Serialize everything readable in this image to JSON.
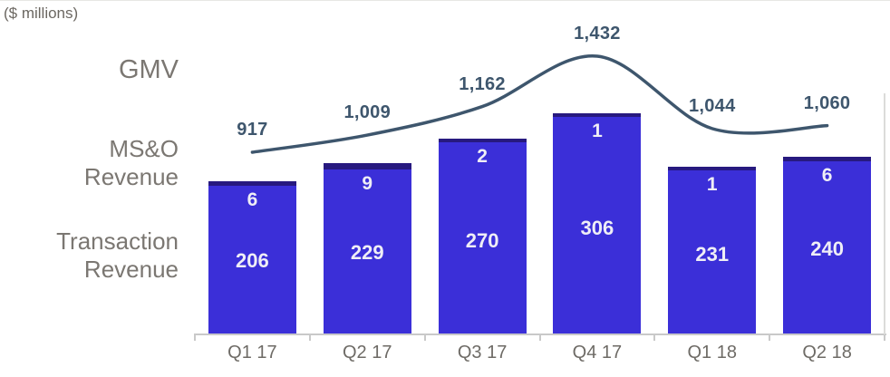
{
  "unit_note": "($ millions)",
  "legend": {
    "gmv": "GMV",
    "mso_line1": "MS&O",
    "mso_line2": "Revenue",
    "transaction_line1": "Transaction",
    "transaction_line2": "Revenue"
  },
  "colors": {
    "bar_transaction": "#3B2FD8",
    "bar_mso_strip": "#27197F",
    "gmv_line": "#3E566D",
    "gmv_label_text": "#3E566D",
    "axis": "#C9C9C9",
    "in_bar_text": "#EFEEF6",
    "legend_text": "#7B7772",
    "x_label_text": "#6E6B66"
  },
  "chart_data": {
    "type": "bar",
    "subtype": "stacked-bar-with-line-overlay",
    "unit": "$ millions",
    "categories": [
      "Q1 17",
      "Q2 17",
      "Q3 17",
      "Q4 17",
      "Q1 18",
      "Q2 18"
    ],
    "series": [
      {
        "name": "Transaction Revenue",
        "type": "bar",
        "values": [
          206,
          229,
          270,
          306,
          231,
          240
        ]
      },
      {
        "name": "MS&O Revenue",
        "type": "bar",
        "values": [
          6,
          9,
          2,
          1,
          1,
          6
        ]
      },
      {
        "name": "GMV",
        "type": "line",
        "values": [
          917,
          1009,
          1162,
          1432,
          1044,
          1060
        ]
      }
    ],
    "gmv_point_labels": [
      "917",
      "1,009",
      "1,162",
      "1,432",
      "1,044",
      "1,060"
    ],
    "legend_position": "left",
    "grid": false,
    "x_axis_visible": true,
    "y_axis_visible": false
  }
}
